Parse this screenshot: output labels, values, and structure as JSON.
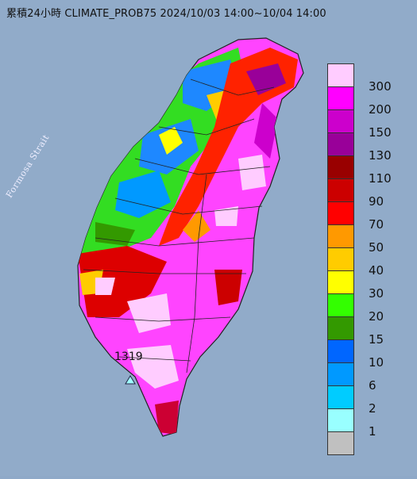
{
  "title": "累積24小時 CLIMATE_PROB75 2024/10/03 14:00~10/04 14:00",
  "sea_label": "Formosa Strait",
  "max_station": {
    "value": "1319",
    "marker": "triangle-marker-icon"
  },
  "legend": [
    {
      "label": "300",
      "color": "#ffccff"
    },
    {
      "label": "200",
      "color": "#ff00ff"
    },
    {
      "label": "150",
      "color": "#cc00cc"
    },
    {
      "label": "130",
      "color": "#990099"
    },
    {
      "label": "110",
      "color": "#990000"
    },
    {
      "label": "90",
      "color": "#cc0000"
    },
    {
      "label": "70",
      "color": "#ff0000"
    },
    {
      "label": "50",
      "color": "#ff9900"
    },
    {
      "label": "40",
      "color": "#ffcc00"
    },
    {
      "label": "30",
      "color": "#ffff00"
    },
    {
      "label": "20",
      "color": "#33ff00"
    },
    {
      "label": "15",
      "color": "#339900"
    },
    {
      "label": "10",
      "color": "#0066ff"
    },
    {
      "label": "6",
      "color": "#0099ff"
    },
    {
      "label": "2",
      "color": "#00ccff"
    },
    {
      "label": "1",
      "color": "#99ffff"
    },
    {
      "label": "",
      "color": "#c0c0c0"
    }
  ]
}
